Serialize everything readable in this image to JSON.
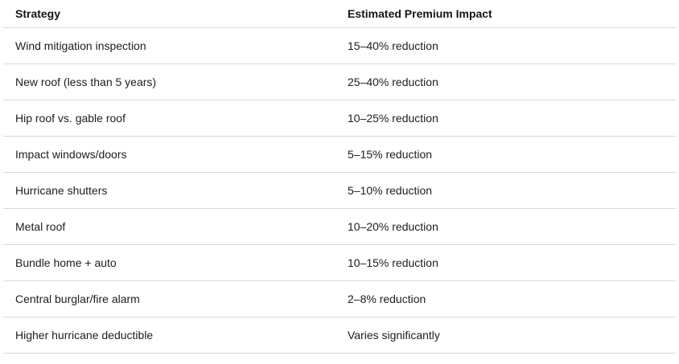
{
  "table": {
    "headers": [
      "Strategy",
      "Estimated Premium Impact"
    ],
    "rows": [
      [
        "Wind mitigation inspection",
        "15–40% reduction"
      ],
      [
        "New roof (less than 5 years)",
        "25–40% reduction"
      ],
      [
        "Hip roof vs. gable roof",
        "10–25% reduction"
      ],
      [
        "Impact windows/doors",
        "5–15% reduction"
      ],
      [
        "Hurricane shutters",
        "5–10% reduction"
      ],
      [
        "Metal roof",
        "10–20% reduction"
      ],
      [
        "Bundle home + auto",
        "10–15% reduction"
      ],
      [
        "Central burglar/fire alarm",
        "2–8% reduction"
      ],
      [
        "Higher hurricane deductible",
        "Varies significantly"
      ]
    ]
  },
  "colors": {
    "border": "#d9d9d9",
    "text": "#202020",
    "background": "#ffffff"
  }
}
